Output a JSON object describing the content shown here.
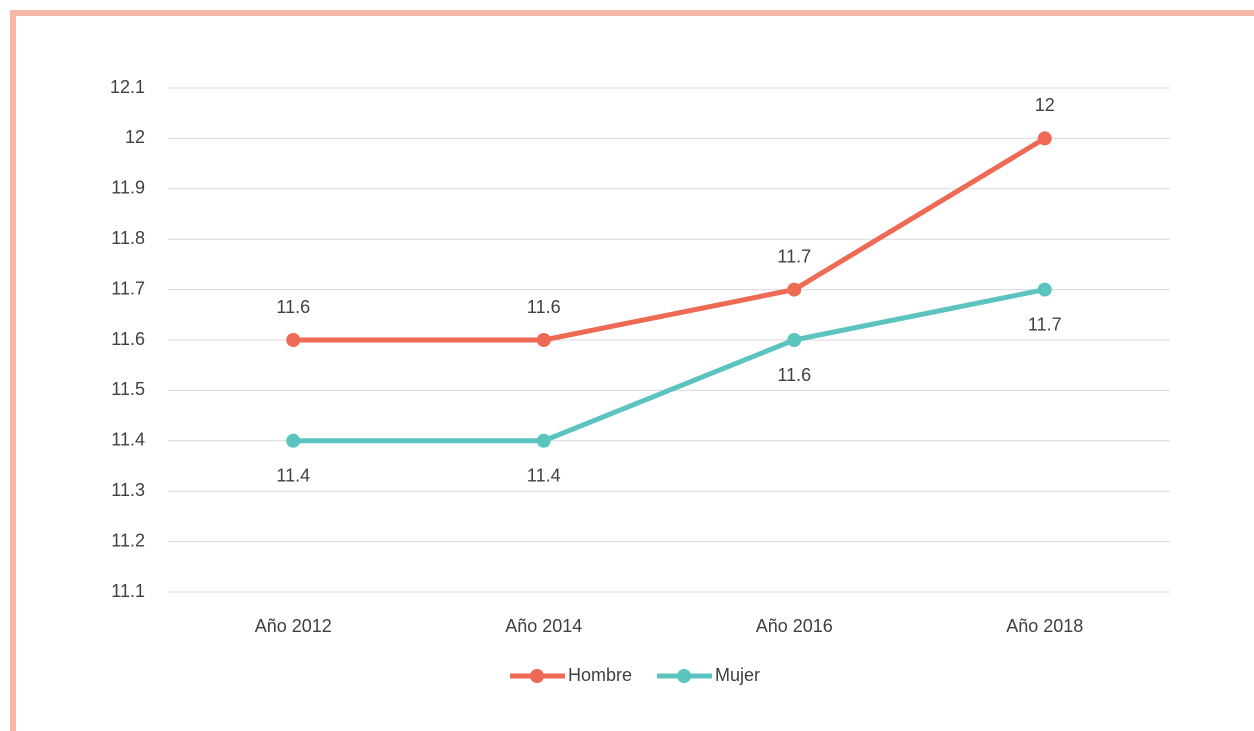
{
  "chart_data": {
    "type": "line",
    "categories": [
      "Año 2012",
      "Año 2014",
      "Año 2016",
      "Año 2018"
    ],
    "series": [
      {
        "name": "Hombre",
        "color": "#ee6a55",
        "values": [
          11.6,
          11.6,
          11.7,
          12
        ]
      },
      {
        "name": "Mujer",
        "color": "#5bc4bf",
        "values": [
          11.4,
          11.4,
          11.6,
          11.7
        ]
      }
    ],
    "ylim": [
      11.1,
      12.1
    ],
    "yticks": [
      11.1,
      11.2,
      11.3,
      11.4,
      11.5,
      11.6,
      11.7,
      11.8,
      11.9,
      12,
      12.1
    ],
    "grid": true,
    "legend": "bottom"
  }
}
